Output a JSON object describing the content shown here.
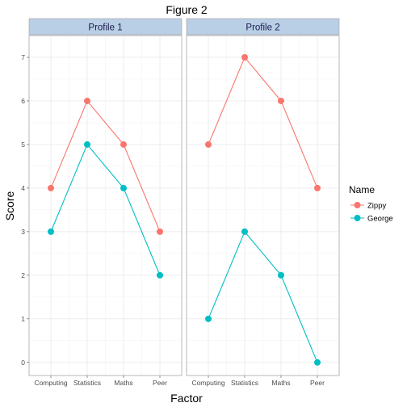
{
  "chart_data": {
    "type": "line",
    "title": "Figure 2",
    "xlabel": "Factor",
    "ylabel": "Score",
    "categories": [
      "Computing",
      "Statistics",
      "Maths",
      "Peer"
    ],
    "ylim": [
      -0.3,
      7.5
    ],
    "yticks": [
      0,
      1,
      2,
      3,
      4,
      5,
      6,
      7
    ],
    "grid": true,
    "legend": {
      "title": "Name",
      "placement": "right",
      "entries": [
        "Zippy",
        "George"
      ]
    },
    "colors": {
      "Zippy": "#f8766d",
      "George": "#00bfc4",
      "strip": "#b9cfe6"
    },
    "panels": [
      {
        "label": "Profile 1",
        "series": [
          {
            "name": "Zippy",
            "values": [
              4,
              6,
              5,
              3
            ]
          },
          {
            "name": "George",
            "values": [
              3,
              5,
              4,
              2
            ]
          }
        ]
      },
      {
        "label": "Profile 2",
        "series": [
          {
            "name": "Zippy",
            "values": [
              5,
              7,
              6,
              4
            ]
          },
          {
            "name": "George",
            "values": [
              1,
              3,
              2,
              0
            ]
          }
        ]
      }
    ]
  }
}
